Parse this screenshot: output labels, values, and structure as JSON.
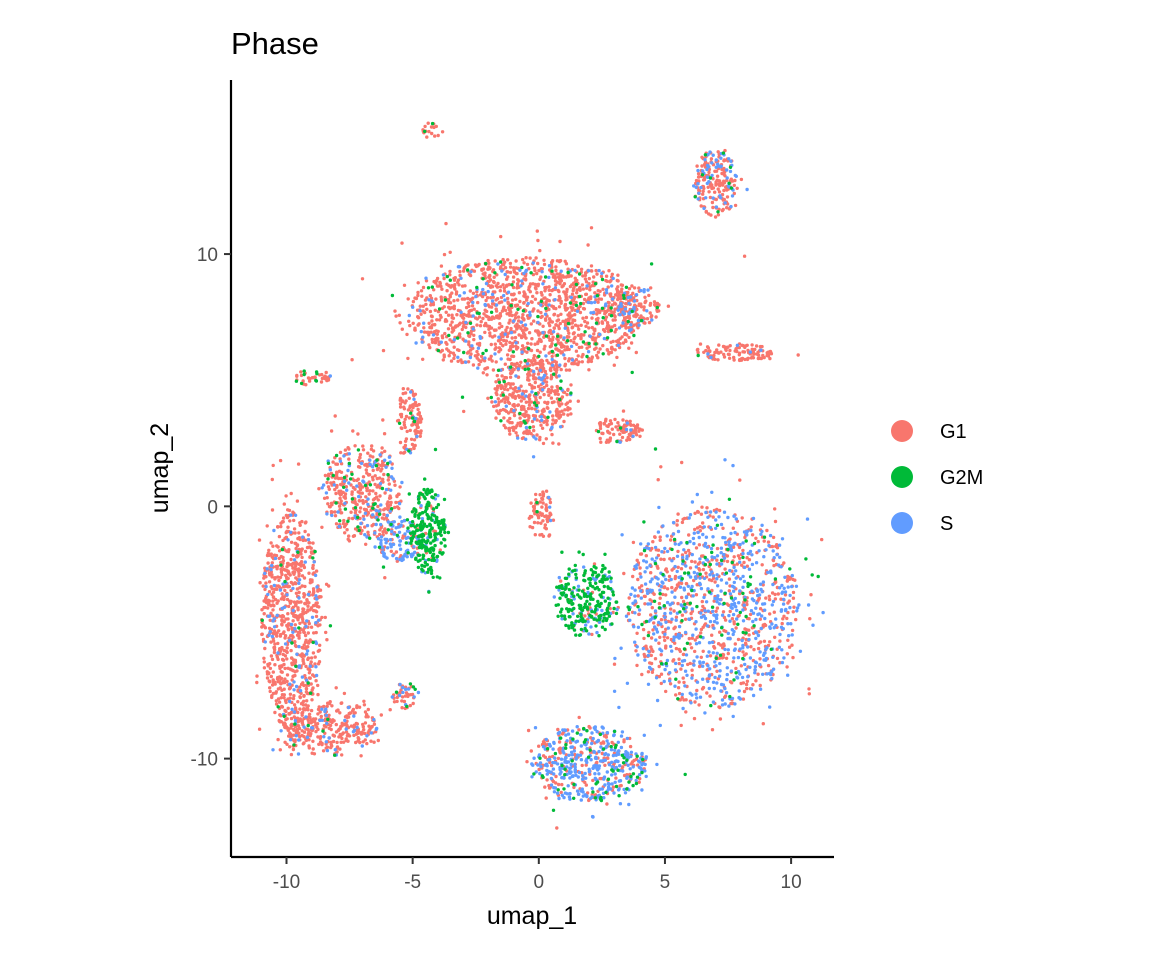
{
  "chart_data": {
    "type": "scatter",
    "title": "Phase",
    "xlabel": "umap_1",
    "ylabel": "umap_2",
    "xlim": [
      -12.2,
      11.7
    ],
    "ylim": [
      -13.9,
      16.9
    ],
    "xticks": [
      -10,
      -5,
      0,
      5,
      10
    ],
    "xtick_labels": [
      "-10",
      "-5",
      "0",
      "5",
      "10"
    ],
    "yticks": [
      -10,
      0,
      10
    ],
    "ytick_labels": [
      "-10",
      "0",
      "10"
    ],
    "grid": false,
    "legend_position": "right",
    "series": [
      {
        "name": "G1",
        "color": "#F8766D"
      },
      {
        "name": "G2M",
        "color": "#00BA38"
      },
      {
        "name": "S",
        "color": "#619CFF"
      }
    ],
    "clusters": [
      {
        "label": "top-center mass",
        "cx": -0.6,
        "cy": 7.6,
        "rx": 4.6,
        "ry": 2.3,
        "weights": [
          0.86,
          0.05,
          0.09
        ],
        "count": 1500
      },
      {
        "label": "top-center tail",
        "cx": -0.3,
        "cy": 4.2,
        "rx": 1.6,
        "ry": 1.6,
        "weights": [
          0.85,
          0.05,
          0.1
        ],
        "count": 400
      },
      {
        "label": "top right lobe",
        "cx": 3.7,
        "cy": 7.9,
        "rx": 1.1,
        "ry": 0.8,
        "weights": [
          0.8,
          0.05,
          0.15
        ],
        "count": 150
      },
      {
        "label": "right strand",
        "cx": 7.8,
        "cy": 6.1,
        "rx": 1.5,
        "ry": 0.35,
        "weights": [
          0.88,
          0.02,
          0.1
        ],
        "count": 110
      },
      {
        "label": "mid right blob",
        "cx": 3.2,
        "cy": 3.0,
        "rx": 1.0,
        "ry": 0.5,
        "weights": [
          0.85,
          0.05,
          0.1
        ],
        "count": 90
      },
      {
        "label": "top right island",
        "cx": 7.0,
        "cy": 12.8,
        "rx": 0.9,
        "ry": 1.3,
        "weights": [
          0.72,
          0.05,
          0.23
        ],
        "count": 220
      },
      {
        "label": "left arc",
        "cx": -9.8,
        "cy": -4.5,
        "rx": 1.2,
        "ry": 4.4,
        "weights": [
          0.9,
          0.02,
          0.08
        ],
        "count": 850
      },
      {
        "label": "left arc bottom",
        "cx": -8.3,
        "cy": -8.8,
        "rx": 1.9,
        "ry": 1.1,
        "weights": [
          0.87,
          0.03,
          0.1
        ],
        "count": 320
      },
      {
        "label": "left upper arm",
        "cx": -7.0,
        "cy": 0.6,
        "rx": 1.6,
        "ry": 1.9,
        "weights": [
          0.8,
          0.05,
          0.15
        ],
        "count": 420
      },
      {
        "label": "left green core",
        "cx": -4.4,
        "cy": -1.0,
        "rx": 0.7,
        "ry": 1.7,
        "weights": [
          0.1,
          0.8,
          0.1
        ],
        "count": 260
      },
      {
        "label": "left blue band",
        "cx": -5.6,
        "cy": -1.3,
        "rx": 0.9,
        "ry": 0.9,
        "weights": [
          0.35,
          0.1,
          0.55
        ],
        "count": 130
      },
      {
        "label": "left connector",
        "cx": -5.1,
        "cy": 3.4,
        "rx": 0.5,
        "ry": 1.4,
        "weights": [
          0.85,
          0.05,
          0.1
        ],
        "count": 110
      },
      {
        "label": "left small island",
        "cx": -9.0,
        "cy": 5.1,
        "rx": 0.8,
        "ry": 0.3,
        "weights": [
          0.9,
          0.05,
          0.05
        ],
        "count": 40
      },
      {
        "label": "small hook",
        "cx": -5.3,
        "cy": -7.5,
        "rx": 0.6,
        "ry": 0.5,
        "weights": [
          0.7,
          0.1,
          0.2
        ],
        "count": 45
      },
      {
        "label": "center sliver",
        "cx": 0.1,
        "cy": -0.4,
        "rx": 0.5,
        "ry": 1.0,
        "weights": [
          0.92,
          0.03,
          0.05
        ],
        "count": 70
      },
      {
        "label": "top streak",
        "cx": -4.3,
        "cy": 14.9,
        "rx": 0.35,
        "ry": 0.3,
        "weights": [
          0.9,
          0.05,
          0.05
        ],
        "count": 18
      },
      {
        "label": "right big mass",
        "cx": 6.9,
        "cy": -4.0,
        "rx": 3.4,
        "ry": 4.0,
        "weights": [
          0.5,
          0.08,
          0.42
        ],
        "count": 1300
      },
      {
        "label": "right green wedge",
        "cx": 1.9,
        "cy": -3.7,
        "rx": 1.3,
        "ry": 1.5,
        "weights": [
          0.08,
          0.72,
          0.2
        ],
        "count": 280
      },
      {
        "label": "right bottom blob",
        "cx": 2.0,
        "cy": -10.2,
        "rx": 2.3,
        "ry": 1.5,
        "weights": [
          0.35,
          0.12,
          0.53
        ],
        "count": 550
      }
    ]
  }
}
